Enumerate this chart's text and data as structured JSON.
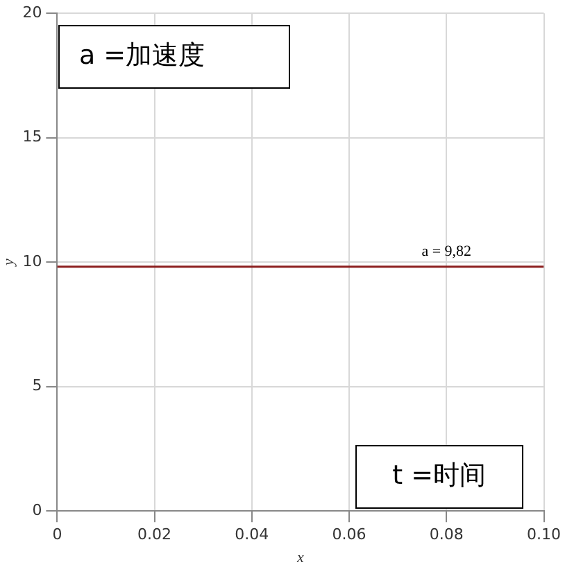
{
  "chart_data": {
    "type": "line",
    "xlabel": "x",
    "ylabel": "y",
    "x": [
      0,
      0.1
    ],
    "series": [
      {
        "color": "#8b1c1c",
        "values": [
          9.82,
          9.82
        ]
      }
    ],
    "xlim": [
      0,
      0.1
    ],
    "xticks": [
      0,
      0.02,
      0.04,
      0.06,
      0.08,
      {
        "value": 0.1,
        "label": "0.10"
      }
    ],
    "ylim": [
      0,
      20
    ],
    "yticks": [
      0,
      5,
      10,
      15,
      20
    ],
    "grid": true,
    "legend": false,
    "marker": "none",
    "line_style": "solid",
    "annotations": [
      {
        "text": "a = 9,82",
        "x": 0.08,
        "y": 9.82
      },
      "a =加速度",
      "t =时间"
    ]
  }
}
